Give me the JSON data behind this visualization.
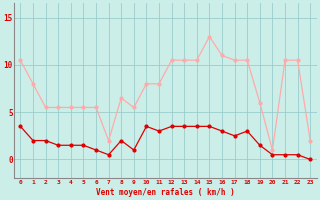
{
  "x": [
    0,
    1,
    2,
    3,
    4,
    5,
    6,
    7,
    8,
    9,
    10,
    11,
    12,
    13,
    14,
    15,
    16,
    17,
    18,
    19,
    20,
    21,
    22,
    23
  ],
  "avg_wind": [
    3.5,
    2.0,
    2.0,
    1.5,
    1.5,
    1.5,
    1.0,
    0.5,
    2.0,
    1.0,
    3.5,
    3.0,
    3.5,
    3.5,
    3.5,
    3.5,
    3.0,
    2.5,
    3.0,
    1.5,
    0.5,
    0.5,
    0.5,
    0.0
  ],
  "gust_wind": [
    10.5,
    8.0,
    5.5,
    5.5,
    5.5,
    5.5,
    5.5,
    2.0,
    6.5,
    5.5,
    8.0,
    8.0,
    10.5,
    10.5,
    10.5,
    13.0,
    11.0,
    10.5,
    10.5,
    6.0,
    1.0,
    10.5,
    10.5,
    2.0
  ],
  "avg_color": "#dd0000",
  "gust_color": "#ffaaaa",
  "background_color": "#cceee8",
  "grid_color": "#99cccc",
  "xlabel": "Vent moyen/en rafales ( km/h )",
  "ytick_labels": [
    "0",
    "5",
    "10",
    "15"
  ],
  "ytick_vals": [
    0,
    5,
    10,
    15
  ],
  "xtick_vals": [
    0,
    1,
    2,
    3,
    4,
    5,
    6,
    7,
    8,
    9,
    10,
    11,
    12,
    13,
    14,
    15,
    16,
    17,
    18,
    19,
    20,
    21,
    22,
    23
  ],
  "ylim": [
    -2.0,
    16.5
  ],
  "xlim": [
    -0.5,
    23.5
  ],
  "spine_color": "#888888"
}
